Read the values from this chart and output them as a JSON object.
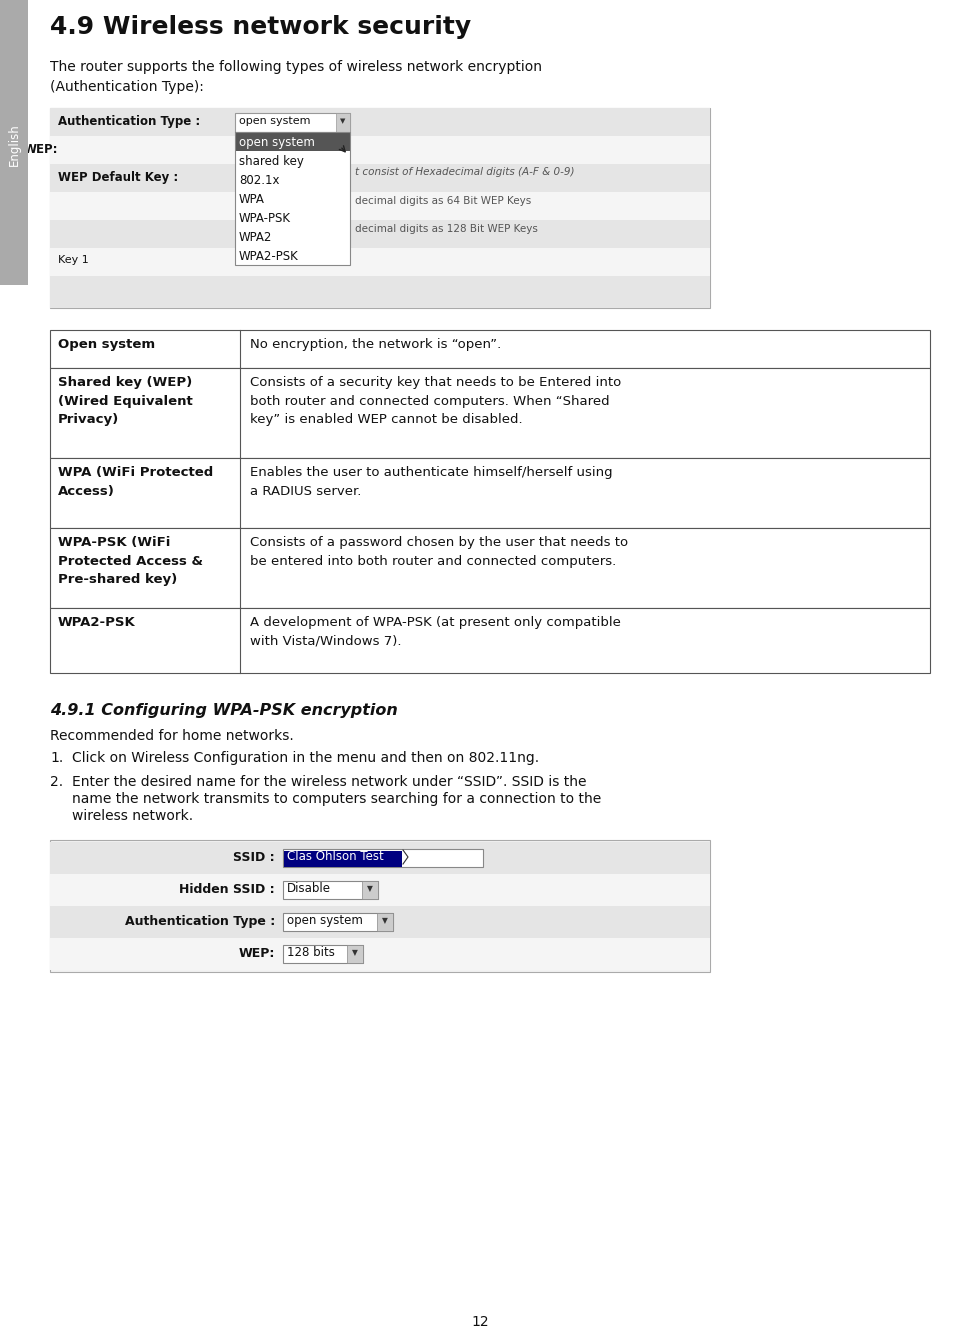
{
  "bg_color": "#ffffff",
  "sidebar_color": "#aaaaaa",
  "sidebar_text": "English",
  "title": "4.9 Wireless network security",
  "subtitle": "The router supports the following types of wireless network encryption\n(Authentication Type):",
  "table_rows": [
    {
      "left": "Open system",
      "right": "No encryption, the network is “open”."
    },
    {
      "left": "Shared key (WEP)\n(Wired Equivalent\nPrivacy)",
      "right": "Consists of a security key that needs to be Entered into\nboth router and connected computers. When “Shared\nkey” is enabled WEP cannot be disabled."
    },
    {
      "left": "WPA (WiFi Protected\nAccess)",
      "right": "Enables the user to authenticate himself/herself using\na RADIUS server."
    },
    {
      "left": "WPA-PSK (WiFi\nProtected Access &\nPre-shared key)",
      "right": "Consists of a password chosen by the user that needs to\nbe entered into both router and connected computers."
    },
    {
      "left": "WPA2-PSK",
      "right": "A development of WPA-PSK (at present only compatible\nwith Vista/Windows 7)."
    }
  ],
  "section2_title": "4.9.1 Configuring WPA-PSK encryption",
  "section2_body": "Recommended for home networks.",
  "step1": "Click on Wireless Configuration in the menu and then on 802.11ng.",
  "step2_line1": "Enter the desired name for the wireless network under “SSID”. SSID is the",
  "step2_line2": "name the network transmits to computers searching for a connection to the",
  "step2_line3": "wireless network.",
  "page_number": "12",
  "dropdown_list": [
    "open system",
    "shared key",
    "802.1x",
    "WPA",
    "WPA-PSK",
    "WPA2",
    "WPA2-PSK"
  ],
  "right_text1": "t consist of Hexadecimal digits (A-F & 0-9)",
  "right_text2": "decimal digits as 64 Bit WEP Keys",
  "right_text3": "decimal digits as 128 Bit WEP Keys",
  "ss1_label1": "Authentication Type :",
  "ss1_val1": "open system",
  "ss1_label2": "WEP:",
  "ss1_label3": "WEP Default Key :",
  "ss1_bottom": "Key 1",
  "ss2_label1": "SSID :",
  "ss2_val1": "Clas Ohlson Test",
  "ss2_label2": "Hidden SSID :",
  "ss2_val2": "Disable",
  "ss2_label3": "Authentication Type :",
  "ss2_val3": "open system",
  "ss2_label4": "WEP:",
  "ss2_val4": "128 bits"
}
